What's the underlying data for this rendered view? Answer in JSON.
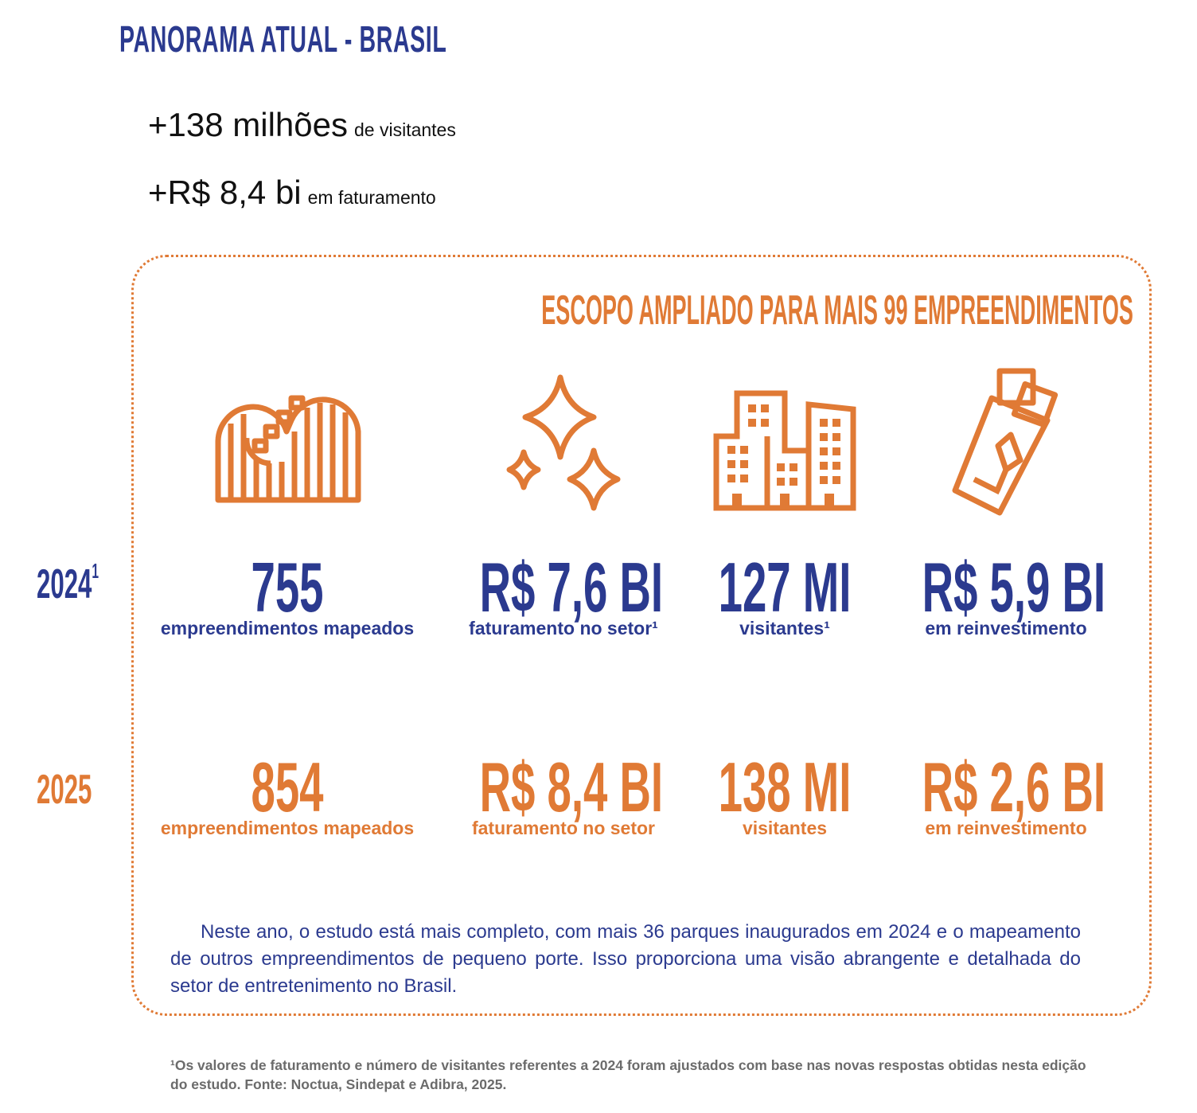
{
  "title": "PANORAMA ATUAL - BRASIL",
  "highlights": [
    {
      "value": "+138 milhões",
      "label": "de visitantes"
    },
    {
      "value": "+R$ 8,4 bi",
      "label": "em faturamento"
    }
  ],
  "scope_title": "ESCOPO AMPLIADO PARA MAIS 99 EMPREENDIMENTOS",
  "icons": [
    "roller-coaster-icon",
    "sparkles-icon",
    "buildings-icon",
    "money-reinvestment-icon"
  ],
  "years": {
    "y2024": {
      "label": "2024",
      "sup": "1"
    },
    "y2025": {
      "label": "2025"
    }
  },
  "stats_2024": [
    {
      "value": "755",
      "label": "empreendimentos mapeados"
    },
    {
      "value": "R$ 7,6 BI",
      "label": "faturamento no setor¹"
    },
    {
      "value": "127 MI",
      "label": "visitantes¹"
    },
    {
      "value": "R$ 5,9 BI",
      "label": "em reinvestimento"
    }
  ],
  "stats_2025": [
    {
      "value": "854",
      "label": "empreendimentos mapeados"
    },
    {
      "value": "R$ 8,4 BI",
      "label": "faturamento no setor"
    },
    {
      "value": "138 MI",
      "label": "visitantes"
    },
    {
      "value": "R$ 2,6 BI",
      "label": "em reinvestimento"
    }
  ],
  "paragraph": "Neste ano, o estudo está mais completo, com mais 36 parques inaugurados em 2024 e o mapeamento de outros empreendimentos de pequeno porte. Isso proporciona uma visão abrangente e detalhada do setor de entretenimento no Brasil.",
  "footnote": "¹Os valores de faturamento e número de visitantes referentes a 2024 foram ajustados com base nas novas respostas obtidas nesta edição do estudo. Fonte: Noctua, Sindepat e Adibra, 2025.",
  "colors": {
    "blue": "#2b3a8f",
    "orange": "#e07a35",
    "gray": "#6b6b6b"
  }
}
